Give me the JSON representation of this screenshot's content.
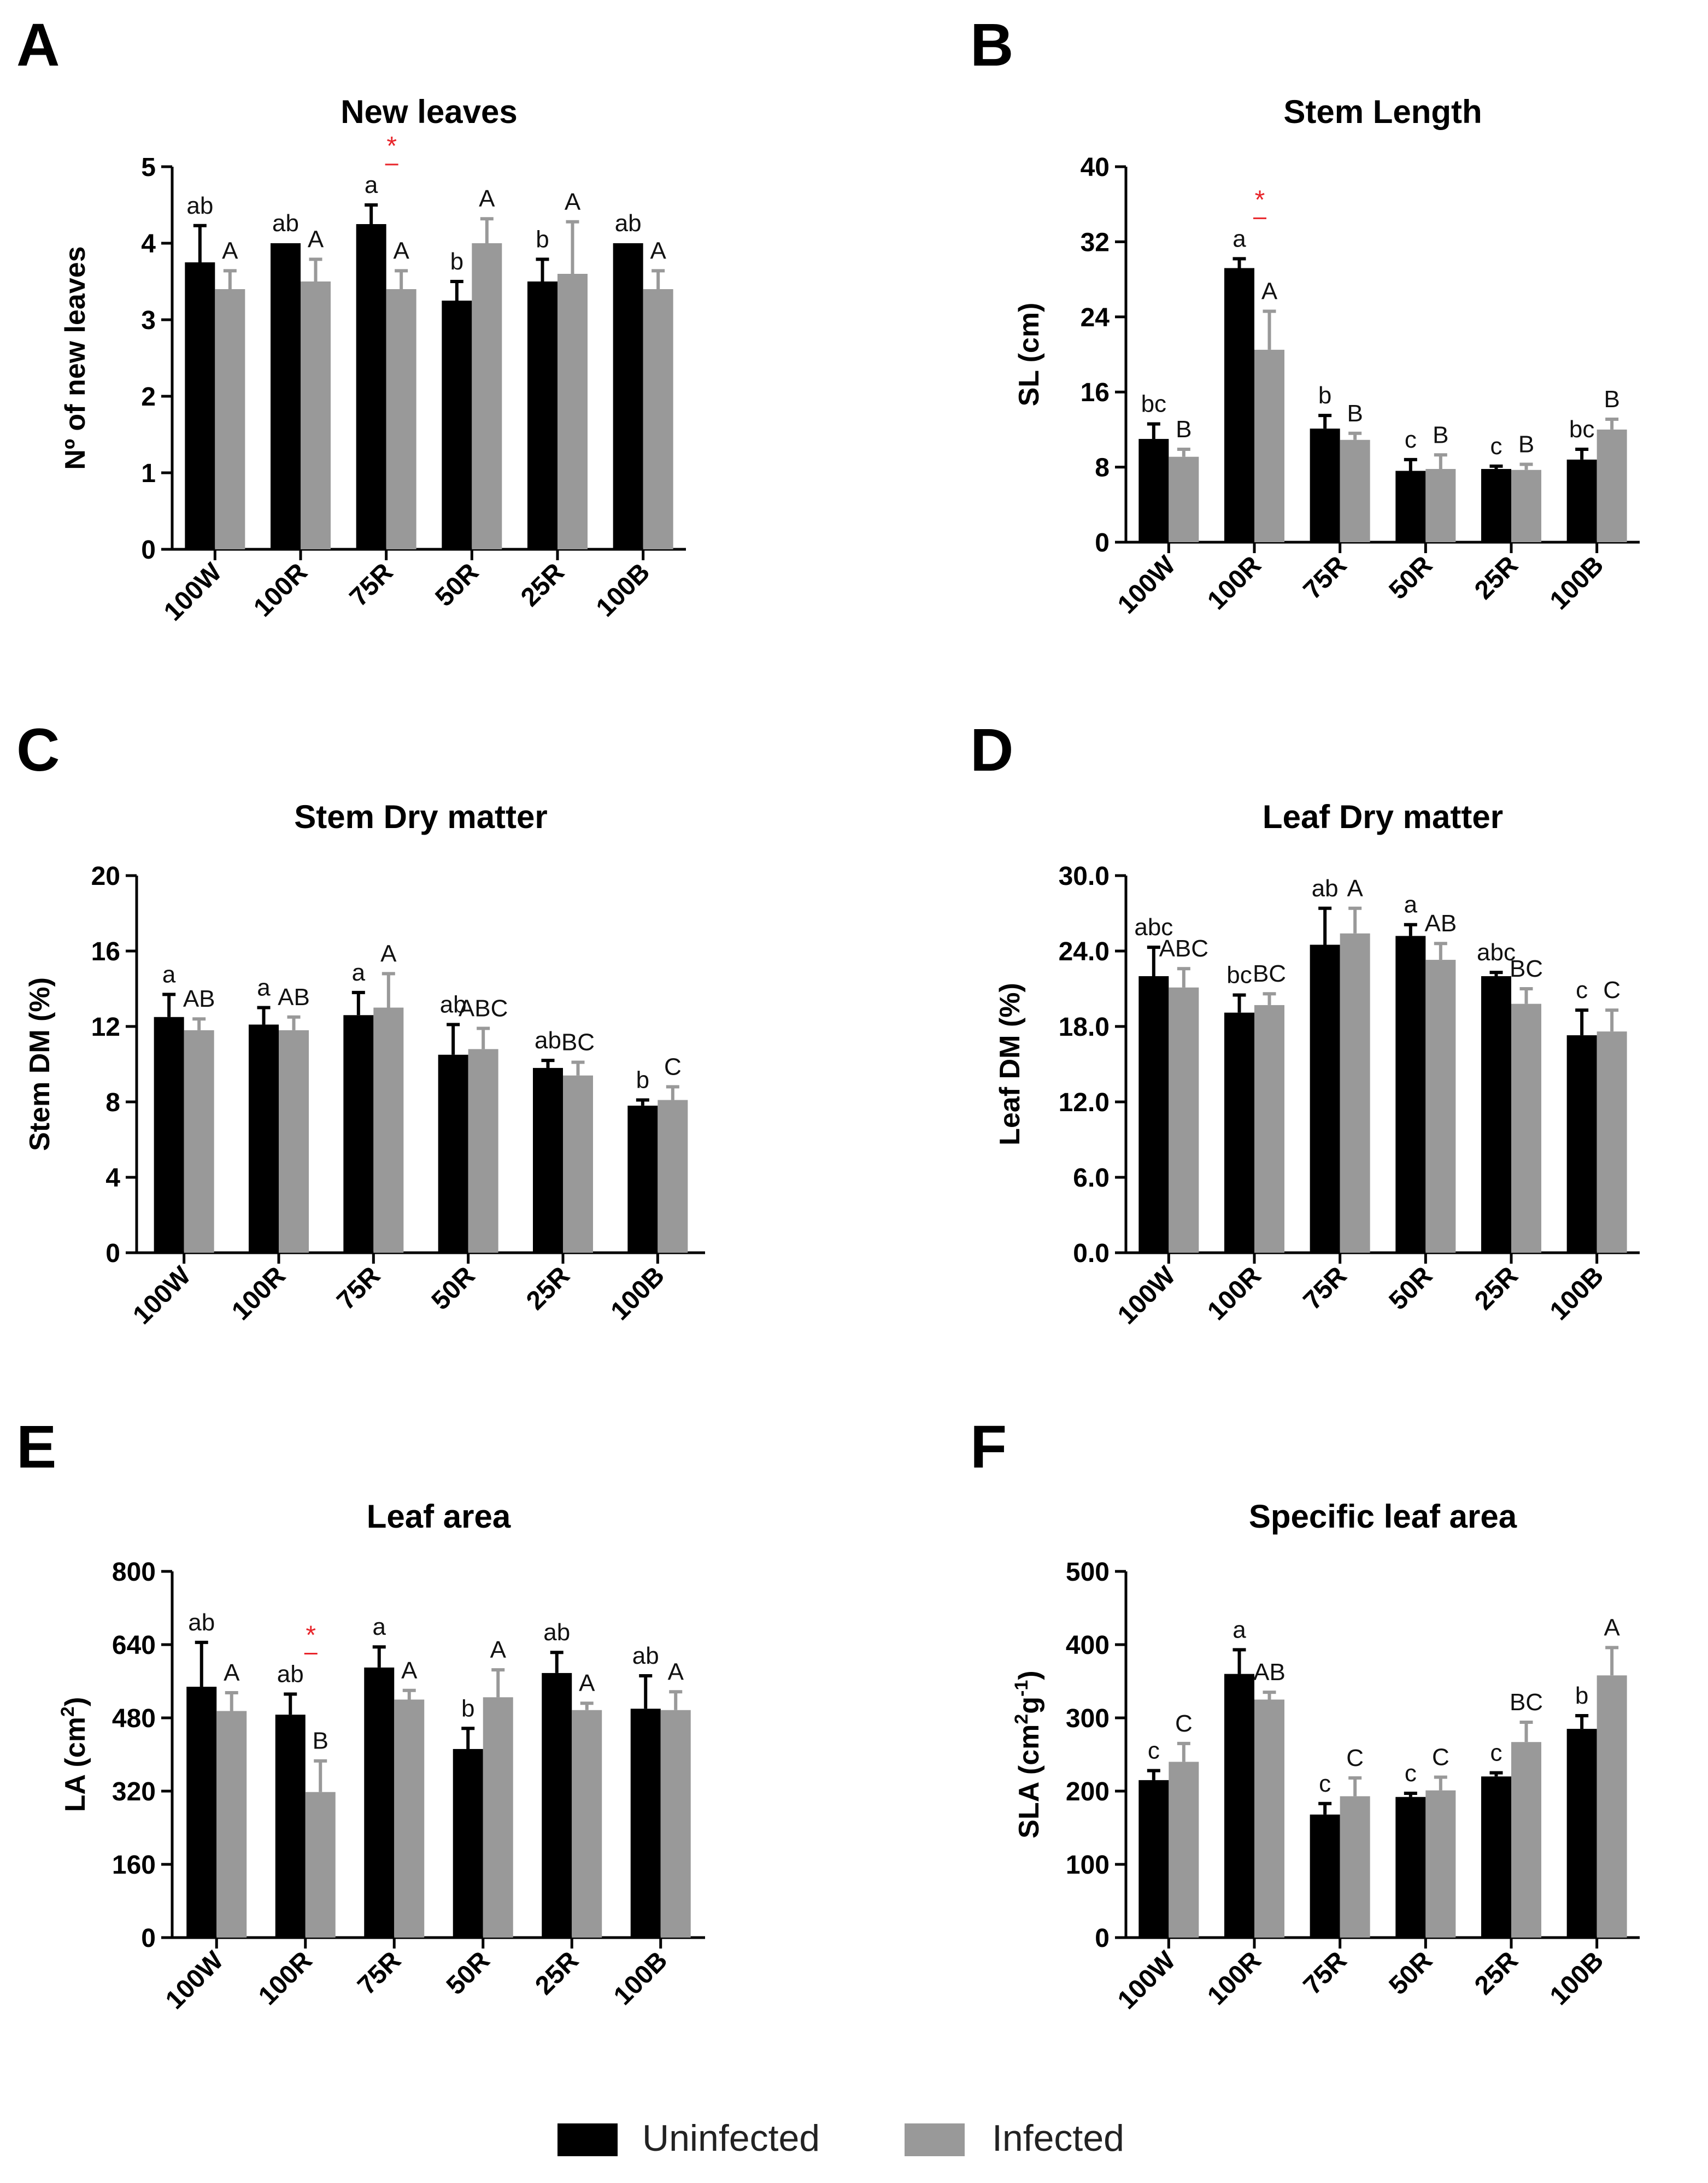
{
  "legend": {
    "items": [
      {
        "label": "Uninfected",
        "color": "#000000"
      },
      {
        "label": "Infected",
        "color": "#999999"
      }
    ]
  },
  "colors": {
    "uninfected": "#000000",
    "infected": "#999999",
    "significance": "#e8242a"
  },
  "chart_data": [
    {
      "panel_label": "A",
      "type": "bar",
      "title": "New leaves",
      "xlabel": "",
      "ylabel": "Nº of new leaves",
      "ylabel_sup": "",
      "ylabel_tail": "",
      "ylabel_sup2": "",
      "ylim": [
        0,
        5
      ],
      "yticks": [
        "0",
        "1",
        "2",
        "3",
        "4",
        "5"
      ],
      "categories": [
        "100W",
        "100R",
        "75R",
        "50R",
        "25R",
        "100B"
      ],
      "series": [
        {
          "name": "Uninfected",
          "values": [
            3.75,
            4.0,
            4.25,
            3.25,
            3.5,
            4.0
          ],
          "errors": [
            0.48,
            0.0,
            0.25,
            0.25,
            0.29,
            0.0
          ],
          "letters": [
            "ab",
            "ab",
            "a",
            "b",
            "b",
            "ab"
          ]
        },
        {
          "name": "Infected",
          "values": [
            3.4,
            3.5,
            3.4,
            4.0,
            3.6,
            3.4
          ],
          "errors": [
            0.24,
            0.29,
            0.24,
            0.32,
            0.68,
            0.24
          ],
          "letters": [
            "A",
            "A",
            "A",
            "A",
            "A",
            "A"
          ]
        }
      ],
      "significance": [
        "",
        "",
        "*",
        "",
        "",
        ""
      ]
    },
    {
      "panel_label": "B",
      "type": "bar",
      "title": "Stem Length",
      "xlabel": "",
      "ylabel": "SL (cm)",
      "ylabel_sup": "",
      "ylabel_tail": "",
      "ylabel_sup2": "",
      "ylim": [
        0,
        40
      ],
      "yticks": [
        "0",
        "8",
        "16",
        "24",
        "32",
        "40"
      ],
      "categories": [
        "100W",
        "100R",
        "75R",
        "50R",
        "25R",
        "100B"
      ],
      "series": [
        {
          "name": "Uninfected",
          "values": [
            11.0,
            29.2,
            12.1,
            7.6,
            7.8,
            8.8
          ],
          "errors": [
            1.6,
            1.0,
            1.4,
            1.2,
            0.3,
            1.1
          ],
          "letters": [
            "bc",
            "a",
            "b",
            "c",
            "c",
            "bc"
          ]
        },
        {
          "name": "Infected",
          "values": [
            9.1,
            20.5,
            10.9,
            7.8,
            7.7,
            12.0
          ],
          "errors": [
            0.8,
            4.1,
            0.7,
            1.5,
            0.6,
            1.1
          ],
          "letters": [
            "B",
            "A",
            "B",
            "B",
            "B",
            "B"
          ]
        }
      ],
      "significance": [
        "",
        "*",
        "",
        "",
        "",
        ""
      ]
    },
    {
      "panel_label": "C",
      "type": "bar",
      "title": "Stem Dry matter",
      "xlabel": "",
      "ylabel": "Stem DM (%)",
      "ylabel_sup": "",
      "ylabel_tail": "",
      "ylabel_sup2": "",
      "ylim": [
        0,
        20
      ],
      "yticks": [
        "0",
        "4",
        "8",
        "12",
        "16",
        "20"
      ],
      "categories": [
        "100W",
        "100R",
        "75R",
        "50R",
        "25R",
        "100B"
      ],
      "series": [
        {
          "name": "Uninfected",
          "values": [
            12.5,
            12.1,
            12.6,
            10.5,
            9.8,
            7.8
          ],
          "errors": [
            1.2,
            0.9,
            1.2,
            1.6,
            0.4,
            0.3
          ],
          "letters": [
            "a",
            "a",
            "a",
            "ab",
            "ab",
            "b"
          ]
        },
        {
          "name": "Infected",
          "values": [
            11.8,
            11.8,
            13.0,
            10.8,
            9.4,
            8.1
          ],
          "errors": [
            0.6,
            0.7,
            1.8,
            1.1,
            0.7,
            0.7
          ],
          "letters": [
            "AB",
            "AB",
            "A",
            "ABC",
            "BC",
            "C"
          ]
        }
      ],
      "significance": [
        "",
        "",
        "",
        "",
        "",
        ""
      ]
    },
    {
      "panel_label": "D",
      "type": "bar",
      "title": "Leaf Dry matter",
      "xlabel": "",
      "ylabel": "Leaf DM (%)",
      "ylabel_sup": "",
      "ylabel_tail": "",
      "ylabel_sup2": "",
      "ylim": [
        0,
        30
      ],
      "yticks": [
        "0.0",
        "6.0",
        "12.0",
        "18.0",
        "24.0",
        "30.0"
      ],
      "categories": [
        "100W",
        "100R",
        "75R",
        "50R",
        "25R",
        "100B"
      ],
      "series": [
        {
          "name": "Uninfected",
          "values": [
            22.0,
            19.1,
            24.5,
            25.2,
            22.0,
            17.3
          ],
          "errors": [
            2.3,
            1.4,
            2.9,
            0.9,
            0.3,
            2.0
          ],
          "letters": [
            "abc",
            "bc",
            "ab",
            "a",
            "abc",
            "c"
          ]
        },
        {
          "name": "Infected",
          "values": [
            21.1,
            19.7,
            25.4,
            23.3,
            19.8,
            17.6
          ],
          "errors": [
            1.5,
            0.9,
            2.0,
            1.3,
            1.2,
            1.7
          ],
          "letters": [
            "ABC",
            "BC",
            "A",
            "AB",
            "BC",
            "C"
          ]
        }
      ],
      "significance": [
        "",
        "",
        "",
        "",
        "",
        ""
      ]
    },
    {
      "panel_label": "E",
      "type": "bar",
      "title": "Leaf area",
      "xlabel": "",
      "ylabel": "LA (cm",
      "ylabel_sup": "2",
      "ylabel_tail": ")",
      "ylabel_sup2": "",
      "ylim": [
        0,
        800
      ],
      "yticks": [
        "0",
        "160",
        "320",
        "480",
        "640",
        "800"
      ],
      "categories": [
        "100W",
        "100R",
        "75R",
        "50R",
        "25R",
        "100B"
      ],
      "series": [
        {
          "name": "Uninfected",
          "values": [
            548,
            487,
            590,
            412,
            578,
            500
          ],
          "errors": [
            97,
            45,
            45,
            45,
            45,
            72
          ],
          "letters": [
            "ab",
            "ab",
            "a",
            "b",
            "ab",
            "ab"
          ]
        },
        {
          "name": "Infected",
          "values": [
            495,
            318,
            520,
            525,
            497,
            497
          ],
          "errors": [
            40,
            68,
            20,
            60,
            15,
            40
          ],
          "letters": [
            "A",
            "B",
            "A",
            "A",
            "A",
            "A"
          ]
        }
      ],
      "significance": [
        "",
        "*",
        "",
        "",
        "",
        ""
      ]
    },
    {
      "panel_label": "F",
      "type": "bar",
      "title": "Specific leaf area",
      "xlabel": "",
      "ylabel": "SLA (cm",
      "ylabel_sup": "2",
      "ylabel_tail": "g",
      "ylabel_sup2": "-1",
      "ylim": [
        0,
        500
      ],
      "yticks": [
        "0",
        "100",
        "200",
        "300",
        "400",
        "500"
      ],
      "categories": [
        "100W",
        "100R",
        "75R",
        "50R",
        "25R",
        "100B"
      ],
      "series": [
        {
          "name": "Uninfected",
          "values": [
            215,
            360,
            168,
            192,
            220,
            285
          ],
          "errors": [
            13,
            33,
            15,
            5,
            5,
            18
          ],
          "letters": [
            "c",
            "a",
            "c",
            "c",
            "c",
            "b"
          ]
        },
        {
          "name": "Infected",
          "values": [
            240,
            325,
            193,
            201,
            267,
            358
          ],
          "errors": [
            25,
            10,
            25,
            18,
            27,
            38
          ],
          "letters": [
            "C",
            "AB",
            "C",
            "C",
            "BC",
            "A"
          ]
        }
      ],
      "significance": [
        "",
        "",
        "",
        "",
        "",
        ""
      ]
    }
  ]
}
